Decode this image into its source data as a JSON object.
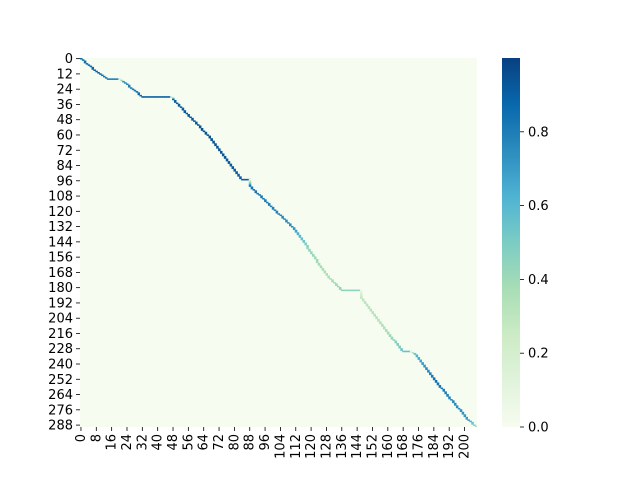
{
  "chart_data": {
    "type": "heatmap",
    "title": "",
    "xlabel": "",
    "ylabel": "",
    "n_rows": 290,
    "n_cols": 207,
    "x_tick_labels": [
      "0",
      "8",
      "16",
      "24",
      "32",
      "40",
      "48",
      "56",
      "64",
      "72",
      "80",
      "88",
      "96",
      "104",
      "112",
      "120",
      "128",
      "136",
      "144",
      "152",
      "160",
      "168",
      "176",
      "184",
      "192",
      "200"
    ],
    "y_tick_labels": [
      "0",
      "12",
      "24",
      "36",
      "48",
      "60",
      "72",
      "84",
      "96",
      "108",
      "120",
      "132",
      "144",
      "156",
      "168",
      "180",
      "192",
      "204",
      "216",
      "228",
      "240",
      "252",
      "264",
      "276",
      "288"
    ],
    "colorbar": {
      "range": [
        0.0,
        1.0
      ],
      "tick_labels": [
        "0.0",
        "0.2",
        "0.4",
        "0.6",
        "0.8"
      ],
      "colormap": "GnBu",
      "low_color": "#f7fcf0",
      "high_color": "#084081"
    },
    "alignment_path": [
      {
        "row": 0,
        "col": 0,
        "value": 0.85
      },
      {
        "row": 10,
        "col": 8,
        "value": 0.9
      },
      {
        "row": 16,
        "col": 14,
        "value": 0.8
      },
      {
        "row": 16,
        "col": 20,
        "value": 0.05
      },
      {
        "row": 18,
        "col": 22,
        "value": 0.75
      },
      {
        "row": 30,
        "col": 32,
        "value": 0.9
      },
      {
        "row": 30,
        "col": 47,
        "value": 0.05
      },
      {
        "row": 32,
        "col": 48,
        "value": 0.9
      },
      {
        "row": 60,
        "col": 66,
        "value": 0.95
      },
      {
        "row": 95,
        "col": 84,
        "value": 0.9
      },
      {
        "row": 95,
        "col": 88,
        "value": 0.05
      },
      {
        "row": 100,
        "col": 88,
        "value": 0.85
      },
      {
        "row": 132,
        "col": 110,
        "value": 0.75
      },
      {
        "row": 148,
        "col": 118,
        "value": 0.45
      },
      {
        "row": 170,
        "col": 128,
        "value": 0.35
      },
      {
        "row": 182,
        "col": 136,
        "value": 0.45
      },
      {
        "row": 182,
        "col": 146,
        "value": 0.05
      },
      {
        "row": 188,
        "col": 146,
        "value": 0.3
      },
      {
        "row": 212,
        "col": 158,
        "value": 0.35
      },
      {
        "row": 230,
        "col": 168,
        "value": 0.55
      },
      {
        "row": 230,
        "col": 172,
        "value": 0.05
      },
      {
        "row": 232,
        "col": 174,
        "value": 0.6
      },
      {
        "row": 252,
        "col": 184,
        "value": 0.85
      },
      {
        "row": 284,
        "col": 202,
        "value": 0.7
      },
      {
        "row": 289,
        "col": 206,
        "value": 0.4
      }
    ]
  }
}
